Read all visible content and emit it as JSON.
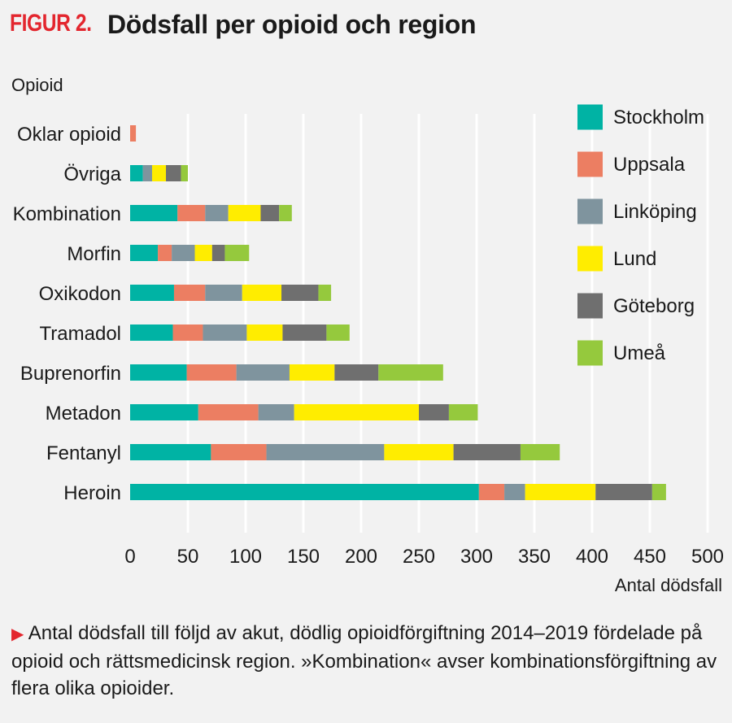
{
  "figure": {
    "label": "FIGUR 2.",
    "title": "Dödsfall per opioid och region"
  },
  "caption": {
    "arrow": "▶",
    "text": "Antal dödsfall till följd av akut, dödlig opioidförgiftning 2014–2019 fördelade på opioid och rättsmedicinsk region. »Kombination« avser kombinationsförgiftning av flera olika opioider."
  },
  "colors": {
    "Stockholm": "#00b3a4",
    "Uppsala": "#ec7e62",
    "Linköping": "#7f949e",
    "Lund": "#ffed00",
    "Göteborg": "#6f6f6f",
    "Umeå": "#95c93d",
    "grid": "#ffffff",
    "background": "#f2f2f2"
  },
  "chart_data": {
    "type": "bar",
    "orientation": "horizontal",
    "stacked": true,
    "title": "Dödsfall per opioid och region",
    "ylabel": "Opioid",
    "xlabel": "Antal dödsfall",
    "xlim": [
      0,
      500
    ],
    "xticks": [
      0,
      50,
      100,
      150,
      200,
      250,
      300,
      350,
      400,
      450,
      500
    ],
    "grid": true,
    "legend_position": "top-right",
    "categories": [
      "Oklar opioid",
      "Övriga",
      "Kombination",
      "Morfin",
      "Oxikodon",
      "Tramadol",
      "Buprenorfin",
      "Metadon",
      "Fentanyl",
      "Heroin"
    ],
    "series": [
      {
        "name": "Stockholm",
        "values": [
          0,
          11,
          41,
          24,
          38,
          37,
          49,
          59,
          70,
          302
        ]
      },
      {
        "name": "Uppsala",
        "values": [
          5,
          0,
          24,
          12,
          27,
          26,
          43,
          52,
          48,
          22
        ]
      },
      {
        "name": "Linköping",
        "values": [
          0,
          8,
          20,
          20,
          32,
          38,
          46,
          31,
          102,
          18
        ]
      },
      {
        "name": "Lund",
        "values": [
          0,
          12,
          28,
          15,
          34,
          31,
          39,
          108,
          60,
          61
        ]
      },
      {
        "name": "Göteborg",
        "values": [
          0,
          13,
          16,
          11,
          32,
          38,
          38,
          26,
          58,
          49
        ]
      },
      {
        "name": "Umeå",
        "values": [
          0,
          6,
          11,
          21,
          11,
          20,
          56,
          25,
          34,
          12
        ]
      }
    ]
  }
}
